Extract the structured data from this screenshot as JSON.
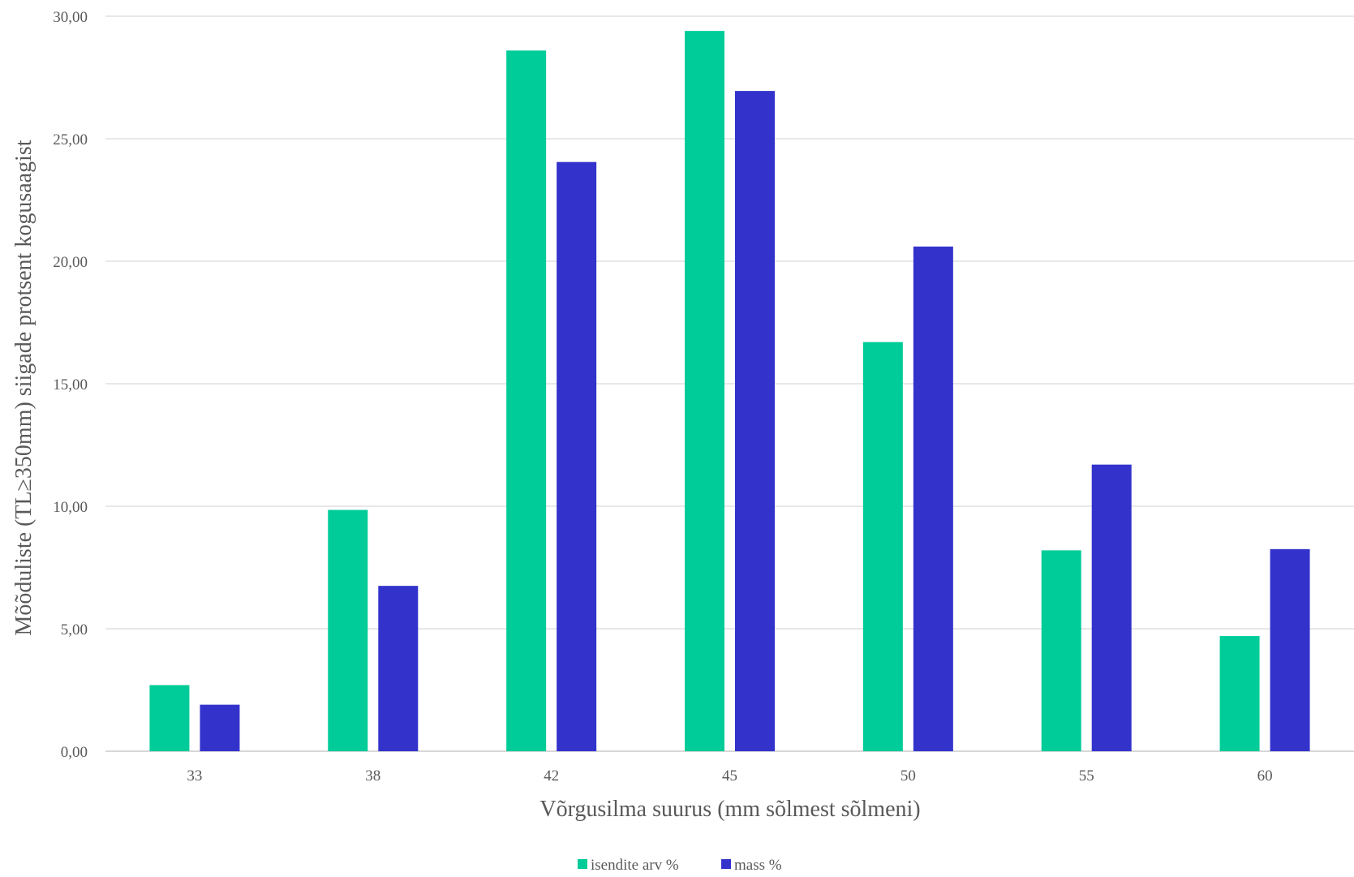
{
  "chart_data": {
    "type": "bar",
    "title": "",
    "xlabel": "Võrgusilma suurus (mm sõlmest sõlmeni)",
    "ylabel": "Mõõduliste (TL≥350mm) siigade protsent kogusaagist",
    "categories": [
      "33",
      "38",
      "42",
      "45",
      "50",
      "55",
      "60"
    ],
    "series": [
      {
        "name": "isendite arv %",
        "color": "#00cc99",
        "values": [
          2.7,
          9.85,
          28.6,
          29.4,
          16.7,
          8.2,
          4.7
        ]
      },
      {
        "name": "mass %",
        "color": "#3333cc",
        "values": [
          1.9,
          6.75,
          24.05,
          26.95,
          20.6,
          11.7,
          8.25
        ]
      }
    ],
    "ylim": [
      0,
      30
    ],
    "yticks": [
      "0,00",
      "5,00",
      "10,00",
      "15,00",
      "20,00",
      "25,00",
      "30,00"
    ],
    "ytick_values": [
      0,
      5,
      10,
      15,
      20,
      25,
      30
    ],
    "grid": true,
    "legend": "bottom-center"
  }
}
